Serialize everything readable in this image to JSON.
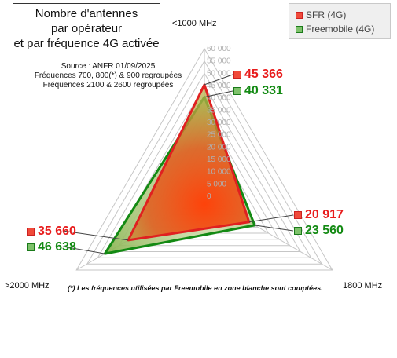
{
  "title": {
    "line1": "Nombre d'antennes",
    "line2": "par opérateur",
    "line3": "et par fréquence 4G activée"
  },
  "source": {
    "line1": "Source : ANFR 01/09/2025",
    "line2": "Fréquences 700, 800(*) & 900 regroupées",
    "line3": "Fréquences 2100 & 2600 regroupées"
  },
  "footnote": "(*) Les fréquences utilisées par Freemobile en zone blanche sont comptées.",
  "chart_data": {
    "type": "radar",
    "axes": [
      "<1000 MHz",
      "1800 MHz",
      ">2000 MHz"
    ],
    "ticks": [
      "0",
      "5 000",
      "10 000",
      "15 000",
      "20 000",
      "25 000",
      "30 000",
      "35 000",
      "40 000",
      "45 000",
      "50 000",
      "55 000",
      "60 000"
    ],
    "rmax": 60000,
    "rstep": 5000,
    "series": [
      {
        "name": "SFR (4G)",
        "values": [
          45366,
          20917,
          35660
        ],
        "labels": [
          "45 366",
          "20 917",
          "35 660"
        ],
        "color": "#e02020"
      },
      {
        "name": "Freemobile (4G)",
        "values": [
          40331,
          23560,
          46638
        ],
        "labels": [
          "40 331",
          "23 560",
          "46 638"
        ],
        "color": "#138a13"
      }
    ]
  }
}
